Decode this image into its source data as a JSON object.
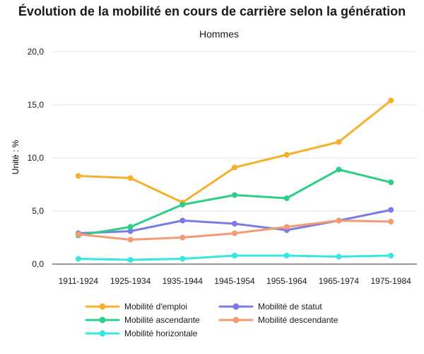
{
  "chart_data": {
    "type": "line",
    "title": "Évolution de la mobilité en cours de carrière selon la génération",
    "subtitle": "Hommes",
    "ylabel": "Unité : %",
    "xlabel": "",
    "ylim": [
      0,
      20
    ],
    "yticks": [
      "0,0",
      "5,0",
      "10,0",
      "15,0",
      "20,0"
    ],
    "ytick_values": [
      0,
      5,
      10,
      15,
      20
    ],
    "grid": true,
    "legend_position": "bottom",
    "categories": [
      "1911-1924",
      "1925-1934",
      "1935-1944",
      "1945-1954",
      "1955-1964",
      "1965-1974",
      "1975-1984"
    ],
    "series": [
      {
        "name": "Mobilité d'emploi",
        "color": "#f5b02e",
        "values": [
          8.3,
          8.1,
          5.8,
          9.1,
          10.3,
          11.5,
          15.4
        ]
      },
      {
        "name": "Mobilité de statut",
        "color": "#7b7be8",
        "values": [
          2.9,
          3.1,
          4.1,
          3.8,
          3.2,
          4.1,
          5.1
        ]
      },
      {
        "name": "Mobilité ascendante",
        "color": "#2dcf87",
        "values": [
          2.7,
          3.5,
          5.6,
          6.5,
          6.2,
          8.9,
          7.7
        ]
      },
      {
        "name": "Mobilité descendante",
        "color": "#f59b73",
        "values": [
          2.8,
          2.3,
          2.5,
          2.9,
          3.5,
          4.1,
          4.0
        ]
      },
      {
        "name": "Mobilité horizontale",
        "color": "#38e8e0",
        "values": [
          0.5,
          0.4,
          0.5,
          0.8,
          0.8,
          0.7,
          0.8
        ]
      }
    ]
  }
}
